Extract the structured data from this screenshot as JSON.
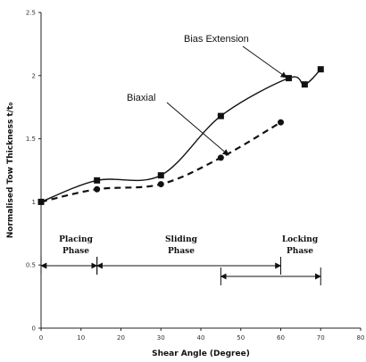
{
  "chart_data": {
    "type": "line",
    "xlabel": "Shear Angle (Degree)",
    "ylabel": "Normalised Tow Thickness t/t₀",
    "xlim": [
      0,
      80
    ],
    "ylim": [
      0,
      2.5
    ],
    "x_ticks": [
      "0",
      "10",
      "20",
      "30",
      "40",
      "50",
      "60",
      "70",
      "80"
    ],
    "y_ticks": [
      "0",
      "0.5",
      "1",
      "1.5",
      "2",
      "2.5"
    ],
    "series": [
      {
        "name": "Bias Extension",
        "marker": "square",
        "line": "solid",
        "points": [
          [
            0,
            1.0
          ],
          [
            14,
            1.17
          ],
          [
            30,
            1.21
          ],
          [
            45,
            1.68
          ],
          [
            62,
            1.98
          ],
          [
            66,
            1.93
          ],
          [
            70,
            2.05
          ]
        ]
      },
      {
        "name": "Biaxial",
        "marker": "circle",
        "line": "dashed",
        "points": [
          [
            0,
            1.0
          ],
          [
            14,
            1.1
          ],
          [
            30,
            1.14
          ],
          [
            45,
            1.35
          ],
          [
            60,
            1.63
          ]
        ]
      }
    ],
    "phases": [
      {
        "line1": "Placing",
        "line2": "Phase",
        "x_start": 0,
        "x_end": 14
      },
      {
        "line1": "Sliding",
        "line2": "Phase",
        "x_start": 14,
        "x_end": 60
      },
      {
        "line1": "Locking",
        "line2": "Phase",
        "x_start": 45,
        "x_end": 70
      }
    ]
  }
}
